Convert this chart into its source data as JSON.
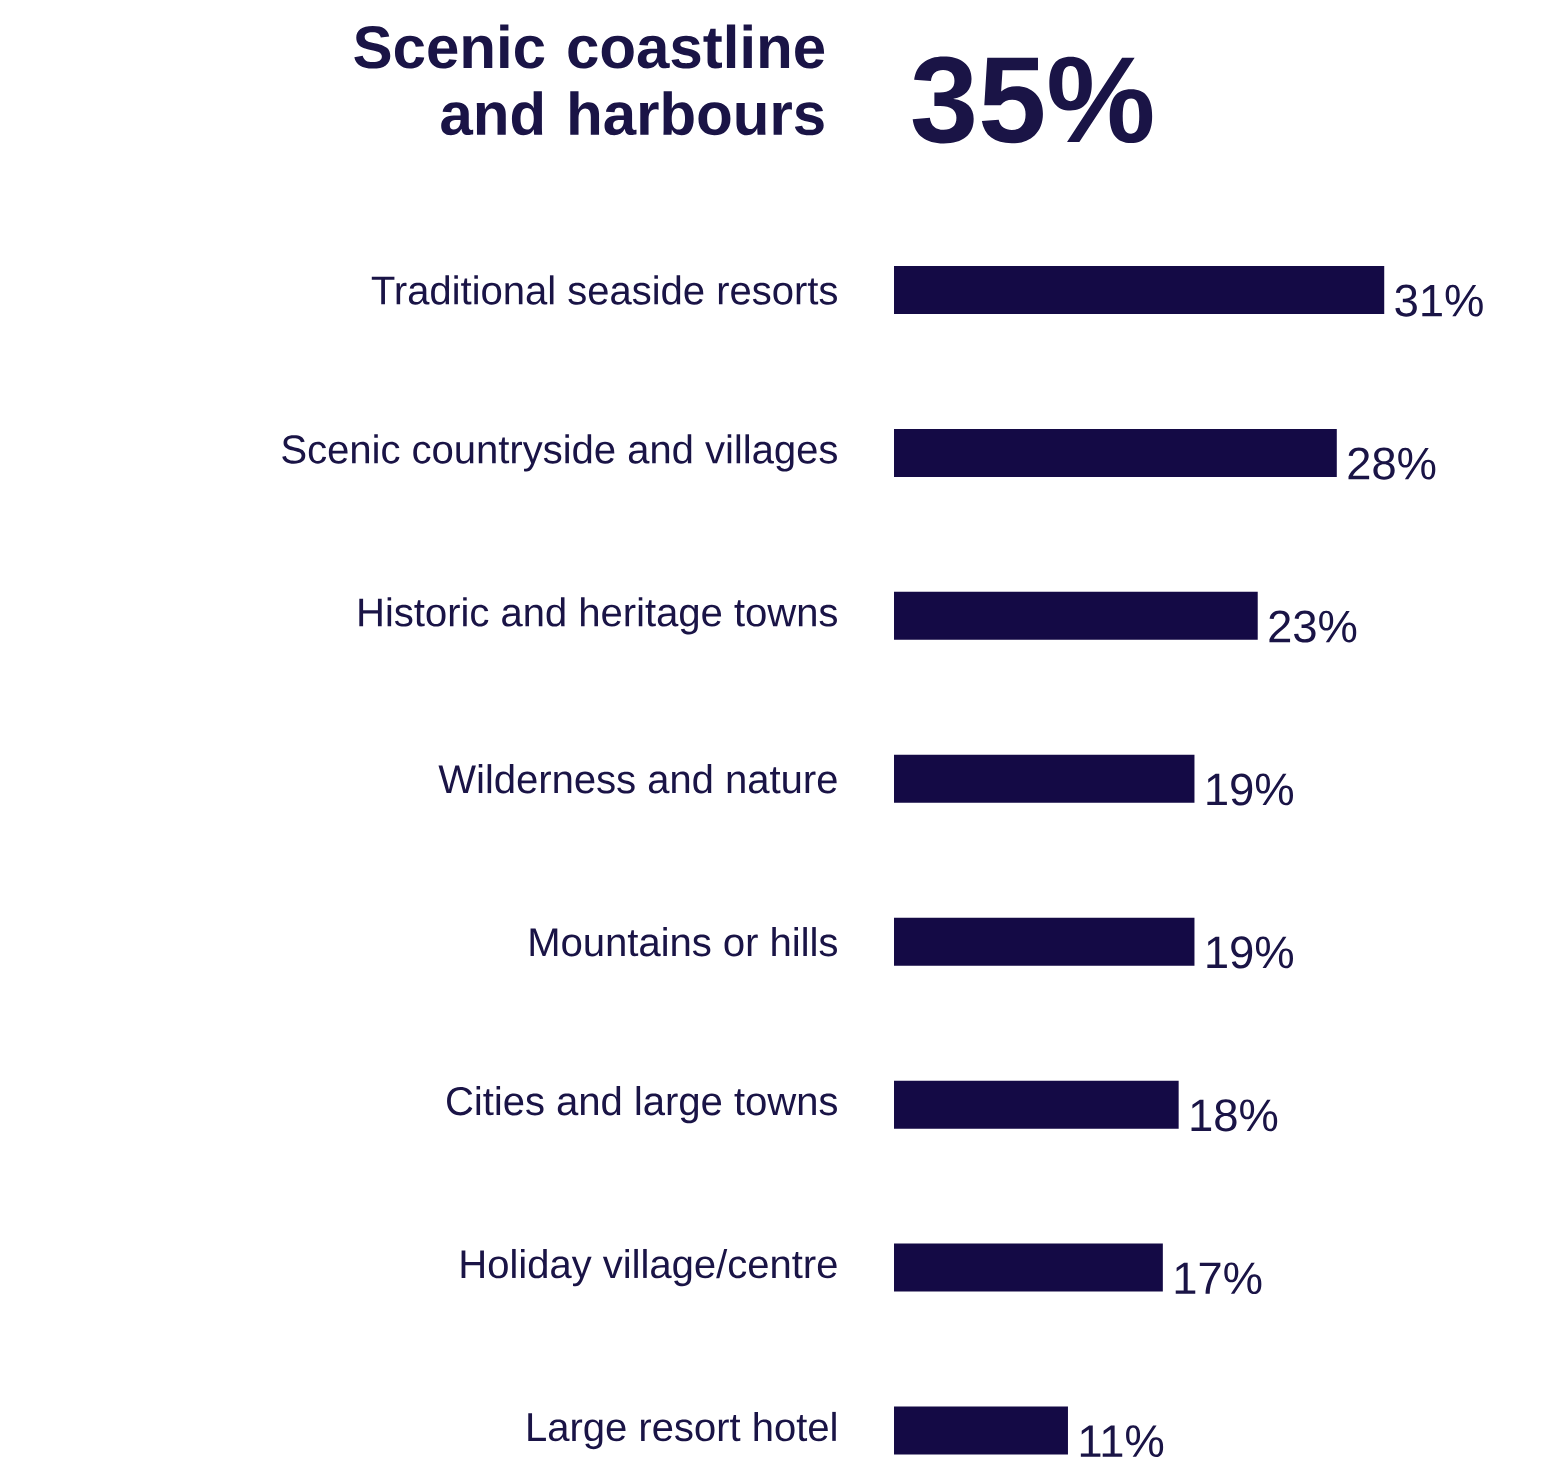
{
  "chart_data": {
    "type": "bar",
    "orientation": "horizontal",
    "title": "Scenic coastline and harbours",
    "annotations": [
      "35%"
    ],
    "categories": [
      "Traditional seaside resorts",
      "Scenic countryside and villages",
      "Historic and heritage towns",
      "Wilderness and nature",
      "Mountains or hills",
      "Cities and large towns",
      "Holiday village/centre",
      "Large resort hotel"
    ],
    "values": [
      31,
      28,
      23,
      19,
      19,
      18,
      17,
      11
    ],
    "value_labels": [
      "31%",
      "28%",
      "23%",
      "19%",
      "19%",
      "18%",
      "17%",
      "11%"
    ],
    "color": "#140a45"
  }
}
